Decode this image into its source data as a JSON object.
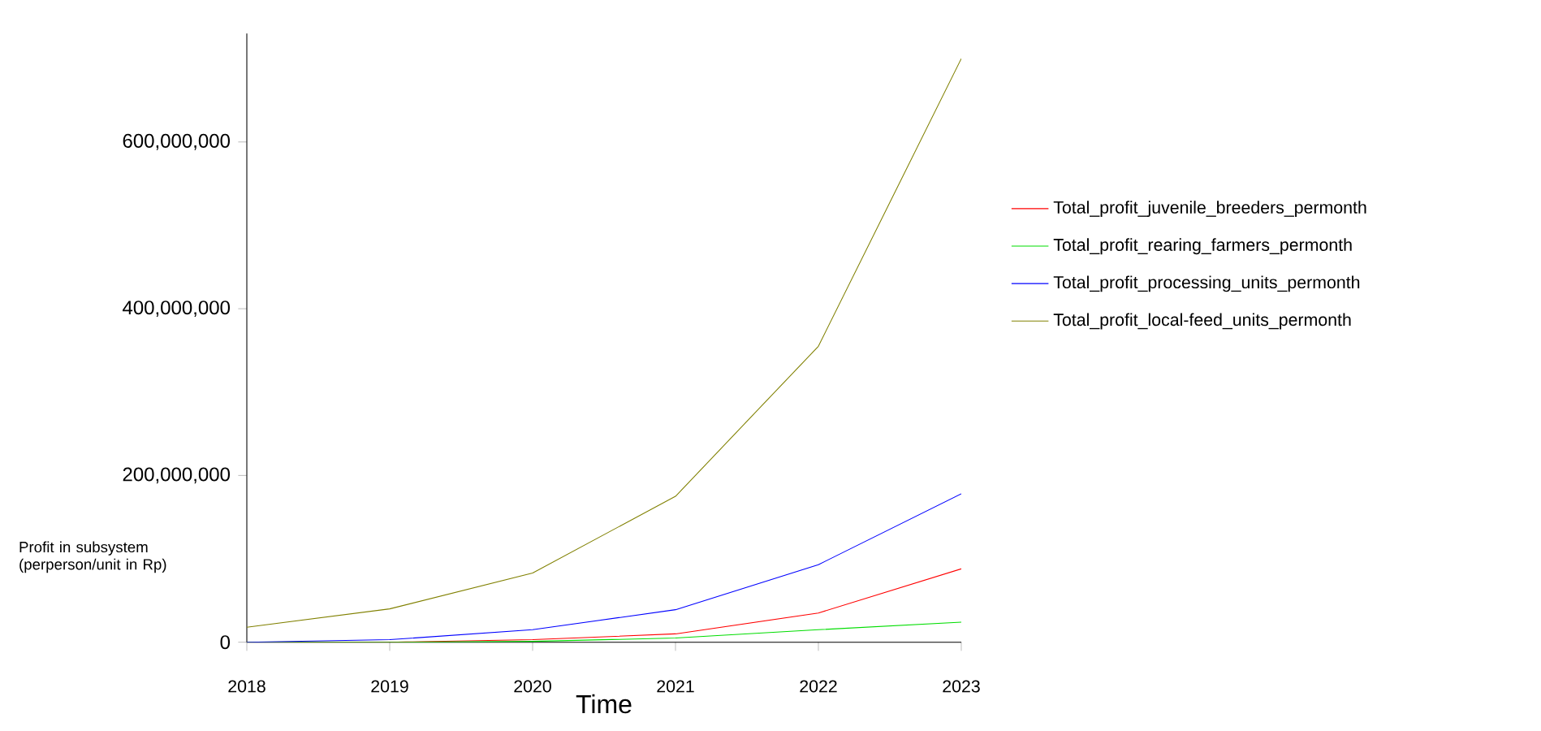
{
  "chart_data": {
    "type": "line",
    "xlabel": "Time",
    "ylabel": "Profit in subsystem (perperson/unit in Rp)",
    "x": [
      2018,
      2019,
      2020,
      2021,
      2022,
      2023
    ],
    "series": [
      {
        "name": "Total_profit_juvenile_breeders_permonth",
        "color": "#ff0000",
        "values": [
          0,
          0,
          3000000,
          10000000,
          35000000,
          88000000
        ]
      },
      {
        "name": "Total_profit_rearing_farmers_permonth",
        "color": "#00dd00",
        "values": [
          0,
          0,
          1000000,
          5000000,
          15000000,
          24000000
        ]
      },
      {
        "name": "Total_profit_processing_units_permonth",
        "color": "#0000ff",
        "values": [
          0,
          3000000,
          15000000,
          39000000,
          93000000,
          178000000
        ]
      },
      {
        "name": "Total_profit_local-feed_units_permonth",
        "color": "#808000",
        "values": [
          18000000,
          40000000,
          83000000,
          175000000,
          355000000,
          700000000
        ]
      }
    ],
    "xlim": [
      2018,
      2023
    ],
    "xticks": [
      2018,
      2019,
      2020,
      2021,
      2022,
      2023
    ],
    "ylim": [
      0,
      730000000
    ],
    "yticks": [
      0,
      {
        "value": 200000000,
        "label": "200,000,000"
      },
      {
        "value": 400000000,
        "label": "400,000,000"
      },
      {
        "value": 600000000,
        "label": "600,000,000"
      }
    ],
    "grid": false,
    "legend": "right"
  }
}
